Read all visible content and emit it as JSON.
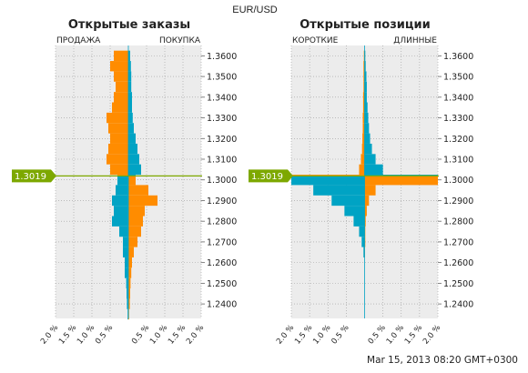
{
  "title": "EUR/USD",
  "timestamp": "Mar 15, 2013 08:20 GMT+0300",
  "current_price": "1.3019",
  "colors": {
    "sell": "#ff8c00",
    "buy": "#00a3c4",
    "price_line": "#7da800",
    "panel_bg": "#ececec"
  },
  "chart_data": [
    {
      "type": "bar",
      "orientation": "horizontal",
      "title": "Открытые заказы",
      "left_label": "ПРОДАЖА",
      "right_label": "ПОКУПКА",
      "y_ticks": [
        "1.3600",
        "1.3500",
        "1.3400",
        "1.3300",
        "1.3200",
        "1.3100",
        "1.3000",
        "1.2900",
        "1.2800",
        "1.2700",
        "1.2600",
        "1.2500",
        "1.2400"
      ],
      "x_ticks": [
        "2.0 %",
        "1.5 %",
        "1.0 %",
        "0.5 %",
        "0.5 %",
        "1.0 %",
        "1.5 %",
        "2.0 %"
      ],
      "xlim": [
        -2.0,
        2.0
      ],
      "ylim": [
        1.233,
        1.365
      ],
      "current_price": 1.3019,
      "series": [
        {
          "name": "ПРОДАЖА",
          "side": "left",
          "price_levels": [
            1.36,
            1.355,
            1.35,
            1.345,
            1.34,
            1.335,
            1.33,
            1.325,
            1.32,
            1.315,
            1.31,
            1.305,
            1.3,
            1.295,
            1.29,
            1.285,
            1.28,
            1.275,
            1.27,
            1.265,
            1.26,
            1.255,
            1.25,
            1.245,
            1.24,
            1.235
          ],
          "values": [
            0.4,
            0.5,
            0.4,
            0.35,
            0.4,
            0.45,
            0.6,
            0.55,
            0.5,
            0.55,
            0.6,
            0.5,
            0.3,
            0.35,
            0.45,
            0.4,
            0.45,
            0.25,
            0.15,
            0.15,
            0.1,
            0.1,
            0.06,
            0.05,
            0.04,
            0.02
          ]
        },
        {
          "name": "ПОКУПКА",
          "side": "right",
          "price_levels": [
            1.36,
            1.355,
            1.35,
            1.345,
            1.34,
            1.335,
            1.33,
            1.325,
            1.32,
            1.315,
            1.31,
            1.305,
            1.3,
            1.295,
            1.29,
            1.285,
            1.28,
            1.275,
            1.27,
            1.265,
            1.26,
            1.255,
            1.25,
            1.245,
            1.24,
            1.235
          ],
          "values": [
            0.05,
            0.07,
            0.08,
            0.08,
            0.1,
            0.1,
            0.12,
            0.15,
            0.2,
            0.25,
            0.3,
            0.35,
            0.2,
            0.55,
            0.8,
            0.45,
            0.4,
            0.35,
            0.25,
            0.15,
            0.1,
            0.08,
            0.06,
            0.05,
            0.04,
            0.02
          ]
        }
      ]
    },
    {
      "type": "bar",
      "orientation": "horizontal",
      "title": "Открытые позиции",
      "left_label": "КОРОТКИЕ",
      "right_label": "ДЛИННЫЕ",
      "y_ticks": [
        "1.3600",
        "1.3500",
        "1.3400",
        "1.3300",
        "1.3200",
        "1.3100",
        "1.3000",
        "1.2900",
        "1.2800",
        "1.2700",
        "1.2600",
        "1.2500",
        "1.2400"
      ],
      "x_ticks": [
        "2.0 %",
        "1.5 %",
        "1.0 %",
        "0.5 %",
        "0.5 %",
        "1.0 %",
        "1.5 %",
        "2.0 %"
      ],
      "xlim": [
        -2.0,
        2.0
      ],
      "ylim": [
        1.233,
        1.365
      ],
      "current_price": 1.3019,
      "series": [
        {
          "name": "КОРОТКИЕ",
          "side": "left",
          "price_levels": [
            1.36,
            1.355,
            1.35,
            1.345,
            1.34,
            1.335,
            1.33,
            1.325,
            1.32,
            1.315,
            1.31,
            1.305,
            1.3,
            1.295,
            1.29,
            1.285,
            1.28,
            1.275,
            1.27,
            1.265
          ],
          "values": [
            0.02,
            0.03,
            0.03,
            0.03,
            0.04,
            0.04,
            0.05,
            0.05,
            0.06,
            0.07,
            0.1,
            0.15,
            2.0,
            1.4,
            0.9,
            0.55,
            0.3,
            0.15,
            0.08,
            0.03
          ]
        },
        {
          "name": "ДЛИННЫЕ",
          "side": "right",
          "price_levels": [
            1.36,
            1.355,
            1.35,
            1.345,
            1.34,
            1.335,
            1.33,
            1.325,
            1.32,
            1.315,
            1.31,
            1.305,
            1.3,
            1.295,
            1.29,
            1.285,
            1.28,
            1.275,
            1.27,
            1.265
          ],
          "values": [
            0.02,
            0.03,
            0.05,
            0.06,
            0.06,
            0.08,
            0.1,
            0.12,
            0.15,
            0.2,
            0.3,
            0.5,
            2.0,
            0.3,
            0.12,
            0.06,
            0.03,
            0.02,
            0.02,
            0.01
          ]
        }
      ]
    }
  ]
}
